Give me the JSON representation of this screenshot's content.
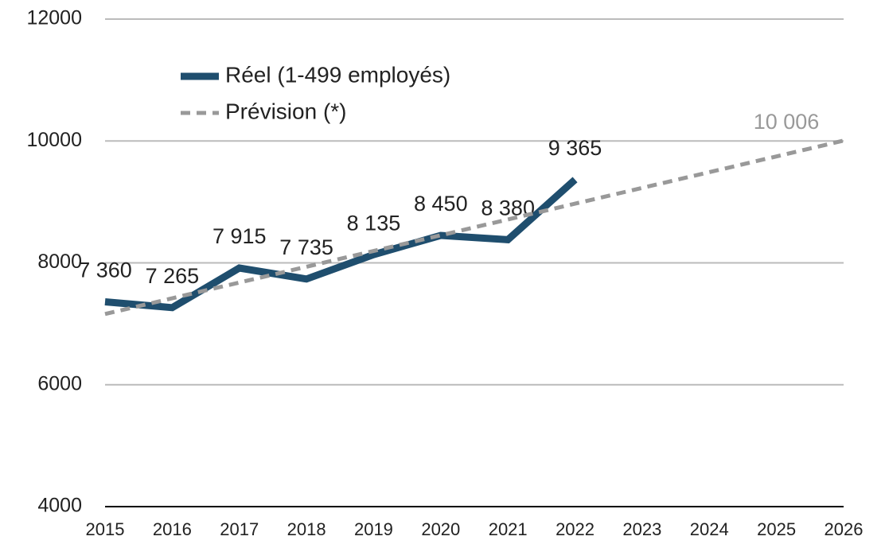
{
  "chart_data": {
    "type": "line",
    "x": [
      2015,
      2016,
      2017,
      2018,
      2019,
      2020,
      2021,
      2022,
      2023,
      2024,
      2025,
      2026
    ],
    "xlim": [
      2015,
      2026
    ],
    "xticks": [
      2015,
      2016,
      2017,
      2018,
      2019,
      2020,
      2021,
      2022,
      2023,
      2024,
      2025,
      2026
    ],
    "ylim": [
      4000,
      12000
    ],
    "yticks": [
      4000,
      6000,
      8000,
      10000,
      12000
    ],
    "grid": true,
    "legend": "upper left",
    "series": [
      {
        "name": "Réel (1-499 employés)",
        "color": "#1f4e6e",
        "style": "solid",
        "values": [
          7360,
          7265,
          7915,
          7735,
          8135,
          8450,
          8380,
          9365,
          null,
          null,
          null,
          null
        ],
        "value_labels": [
          "7 360",
          "7 265",
          "7 915",
          "7 735",
          "8 135",
          "8 450",
          "8 380",
          "9 365",
          null,
          null,
          null,
          null
        ]
      },
      {
        "name": "Prévision (*)",
        "color": "#999999",
        "style": "dashed",
        "values": [
          7160,
          7419,
          7677,
          7936,
          8195,
          8453,
          8712,
          8971,
          9230,
          9488,
          9747,
          10006
        ],
        "value_labels": [
          null,
          null,
          null,
          null,
          null,
          null,
          null,
          null,
          null,
          null,
          null,
          "10 006"
        ]
      }
    ]
  }
}
